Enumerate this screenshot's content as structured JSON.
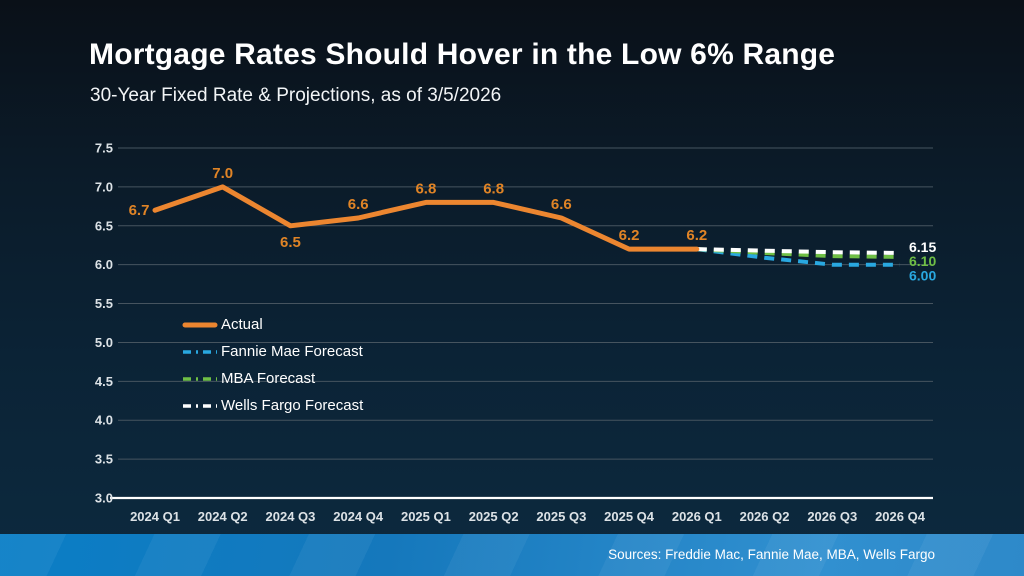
{
  "slide": {
    "title": "Mortgage Rates Should Hover in the Low 6% Range",
    "subtitle": "30-Year Fixed Rate & Projections, as of 3/5/2026",
    "source": "Sources: Freddie Mac, Fannie Mae, MBA, Wells Fargo"
  },
  "colors": {
    "background_top": "#0A1018",
    "background_bottom": "#0D2A3F",
    "footer_band_left": "#0A7EC6",
    "footer_band_right": "#3190D0",
    "gridline": "#46545F",
    "axis_line": "#FFFFFF",
    "tick_label": "#DCE2E6",
    "actual": "#EC8630",
    "data_label": "#E08426",
    "fannie_mae": "#29A8E0",
    "mba": "#6FBF45",
    "wells_fargo": "#FFFFFF"
  },
  "chart_data": {
    "type": "line",
    "title": "Mortgage Rates Should Hover in the Low 6% Range",
    "subtitle": "30-Year Fixed Rate & Projections, as of 3/5/2026",
    "xlabel": "",
    "ylabel": "",
    "ylim": [
      3.0,
      7.5
    ],
    "ytick_step": 0.5,
    "grid": true,
    "legend_position": "middle-left",
    "categories": [
      "2024 Q1",
      "2024 Q2",
      "2024 Q3",
      "2024 Q4",
      "2025 Q1",
      "2025 Q2",
      "2025 Q3",
      "2025 Q4",
      "2026 Q1",
      "2026 Q2",
      "2026 Q3",
      "2026 Q4"
    ],
    "series": [
      {
        "name": "Actual",
        "color_key": "actual",
        "style": "solid",
        "values": [
          6.7,
          7.0,
          6.5,
          6.6,
          6.8,
          6.8,
          6.6,
          6.2,
          6.2,
          null,
          null,
          null
        ],
        "point_labels": [
          "6.7",
          "7.0",
          "6.5",
          "6.6",
          "6.8",
          "6.8",
          "6.6",
          "6.2",
          "6.2"
        ],
        "label_positions": [
          "left",
          "above",
          "below",
          "above",
          "above",
          "above",
          "above",
          "above",
          "above"
        ]
      },
      {
        "name": "Fannie Mae Forecast",
        "color_key": "fannie_mae",
        "style": "dashed",
        "values": [
          null,
          null,
          null,
          null,
          null,
          null,
          null,
          null,
          6.2,
          6.09,
          6.0,
          6.0
        ],
        "end_label": "6.00"
      },
      {
        "name": "MBA Forecast",
        "color_key": "mba",
        "style": "dashed",
        "values": [
          null,
          null,
          null,
          null,
          null,
          null,
          null,
          null,
          6.2,
          6.15,
          6.11,
          6.1
        ],
        "end_label": "6.10"
      },
      {
        "name": "Wells Fargo Forecast",
        "color_key": "wells_fargo",
        "style": "dashed",
        "values": [
          null,
          null,
          null,
          null,
          null,
          null,
          null,
          null,
          6.2,
          6.18,
          6.16,
          6.15
        ],
        "end_label": "6.15"
      }
    ]
  }
}
